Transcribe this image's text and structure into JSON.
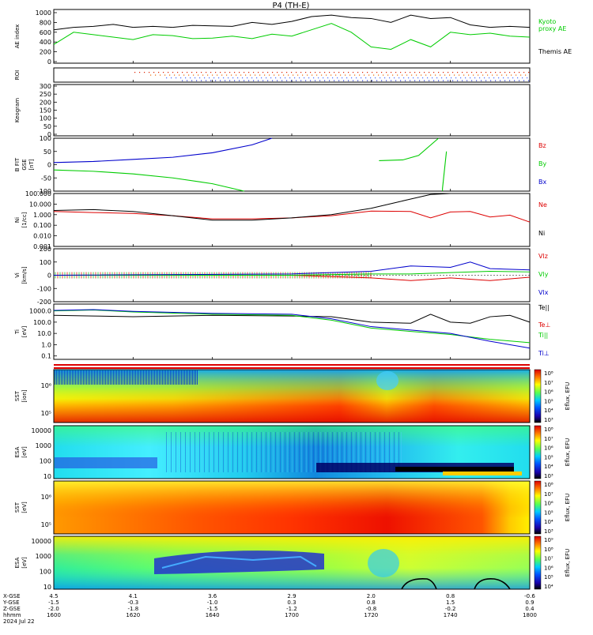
{
  "title": "P4  (TH-E)",
  "footer": {
    "date": "2024 Jul 22",
    "rows": [
      {
        "label": "X-GSE",
        "values": [
          "4.5",
          "4.1",
          "3.6",
          "2.9",
          "2.0",
          "0.8",
          "-0.6"
        ]
      },
      {
        "label": "Y-GSE",
        "values": [
          "-1.5",
          "-0.3",
          "-1.0",
          "0.3",
          "0.8",
          "1.5",
          "0.9"
        ]
      },
      {
        "label": "Z-GSE",
        "values": [
          "-2.0",
          "-1.8",
          "-1.5",
          "-1.2",
          "-0.8",
          "-0.2",
          "0.4"
        ]
      },
      {
        "label": "hhmm",
        "values": [
          "1600",
          "1620",
          "1640",
          "1700",
          "1720",
          "1740",
          "1800"
        ]
      }
    ]
  },
  "colors": {
    "kyoto": "#00cc00",
    "themis": "#000000",
    "bz": "#dd0000",
    "by": "#00cc00",
    "bx": "#0000cc",
    "ne": "#dd0000",
    "ni": "#000000",
    "te_perp": "#dd0000",
    "ti_par": "#00cc00",
    "ti_perp": "#0000cc"
  },
  "chart_data": [
    {
      "type": "line",
      "panel": "ae",
      "ylabel": "AE index",
      "ylim": [
        0,
        1000
      ],
      "yticks": [
        "0",
        "200",
        "400",
        "600",
        "800",
        "1000"
      ],
      "x_hhmm_range": [
        "1600",
        "1800"
      ],
      "series": [
        {
          "name": "Themis AE",
          "key": "themis",
          "x": [
            1600,
            1605,
            1610,
            1615,
            1620,
            1625,
            1630,
            1635,
            1640,
            1645,
            1650,
            1655,
            1700,
            1705,
            1710,
            1715,
            1720,
            1725,
            1730,
            1735,
            1740,
            1745,
            1750,
            1755,
            1800
          ],
          "values": [
            650,
            700,
            720,
            760,
            700,
            720,
            700,
            740,
            730,
            720,
            800,
            760,
            820,
            920,
            950,
            900,
            880,
            800,
            950,
            880,
            900,
            750,
            700,
            720,
            700
          ]
        },
        {
          "name": "Kyoto proxy AE",
          "key": "kyoto",
          "x": [
            1600,
            1605,
            1610,
            1615,
            1620,
            1625,
            1630,
            1635,
            1640,
            1645,
            1650,
            1655,
            1700,
            1705,
            1710,
            1715,
            1720,
            1725,
            1730,
            1735,
            1740,
            1745,
            1750,
            1755,
            1800
          ],
          "values": [
            350,
            600,
            550,
            500,
            450,
            550,
            530,
            470,
            480,
            520,
            470,
            560,
            520,
            650,
            780,
            600,
            300,
            250,
            450,
            300,
            600,
            550,
            580,
            520,
            500
          ]
        }
      ]
    },
    {
      "type": "scatter",
      "panel": "roi",
      "ylabel": "ROI"
    },
    {
      "type": "heatmap",
      "panel": "keogram",
      "ylabel": "Keogram",
      "ylim": [
        0,
        300
      ],
      "yticks": [
        "0",
        "50",
        "100",
        "150",
        "200",
        "250",
        "300"
      ]
    },
    {
      "type": "line",
      "panel": "bfield",
      "ylabel_lines": [
        "B FIT",
        "GSE",
        "[nT]"
      ],
      "ylim": [
        -100,
        100
      ],
      "yticks": [
        "-100",
        "-50",
        "0",
        "50",
        "100"
      ],
      "series": [
        {
          "name": "Bz",
          "key": "bz",
          "x": [],
          "values": []
        },
        {
          "name": "By",
          "key": "by",
          "x": [
            1600,
            1610,
            1620,
            1630,
            1640,
            1648
          ],
          "values": [
            -20,
            -25,
            -35,
            -50,
            -72,
            -100
          ]
        },
        {
          "name": "Bx",
          "key": "bx",
          "x": [
            1600,
            1610,
            1620,
            1630,
            1640,
            1650,
            1655
          ],
          "values": [
            8,
            12,
            20,
            28,
            45,
            75,
            100
          ]
        }
      ]
    },
    {
      "type": "line",
      "panel": "density",
      "ylabel_lines": [
        "Ni",
        "[1/cc]"
      ],
      "yscale": "log",
      "ylim": [
        0.001,
        100
      ],
      "yticks": [
        "0.001",
        "0.010",
        "0.100",
        "1.000",
        "10.000",
        "100.000"
      ],
      "series": [
        {
          "name": "Ne",
          "key": "ne",
          "x": [
            1600,
            1610,
            1620,
            1630,
            1640,
            1650,
            1700,
            1710,
            1720,
            1730,
            1735,
            1740,
            1745,
            1750,
            1755,
            1800
          ],
          "values": [
            2.0,
            1.6,
            1.3,
            0.8,
            0.4,
            0.4,
            0.5,
            0.8,
            2.2,
            2.0,
            0.5,
            1.8,
            2.0,
            0.6,
            0.9,
            0.2
          ]
        },
        {
          "name": "Ni",
          "key": "ni",
          "x": [
            1600,
            1610,
            1620,
            1630,
            1640,
            1650,
            1700,
            1710,
            1720,
            1730,
            1735,
            1740
          ],
          "values": [
            2.5,
            3.0,
            2.0,
            0.8,
            0.3,
            0.3,
            0.5,
            1.0,
            4.0,
            30.0,
            80.0,
            100.0
          ]
        }
      ]
    },
    {
      "type": "line",
      "panel": "velocity",
      "ylabel_lines": [
        "Vi",
        "[km/s]"
      ],
      "ylim": [
        -200,
        200
      ],
      "yticks": [
        "-200",
        "-100",
        "0",
        "100",
        "200"
      ],
      "series": [
        {
          "name": "Vlz",
          "key": "bz",
          "x": [
            1600,
            1700,
            1720,
            1730,
            1740,
            1750,
            1800
          ],
          "values": [
            0,
            0,
            -20,
            -40,
            -20,
            -40,
            -15
          ]
        },
        {
          "name": "Vly",
          "key": "by",
          "x": [
            1600,
            1700,
            1720,
            1730,
            1740,
            1750,
            1800
          ],
          "values": [
            0,
            0,
            10,
            10,
            20,
            30,
            25
          ]
        },
        {
          "name": "Vlx",
          "key": "bx",
          "x": [
            1600,
            1700,
            1720,
            1730,
            1740,
            1745,
            1750,
            1800
          ],
          "values": [
            0,
            10,
            30,
            70,
            60,
            100,
            50,
            40
          ]
        }
      ]
    },
    {
      "type": "line",
      "panel": "temperature",
      "ylabel_lines": [
        "Ti",
        "[eV]"
      ],
      "yscale": "log",
      "ylim": [
        0.05,
        4000
      ],
      "yticks": [
        "0.1",
        "1.0",
        "10.0",
        "100.0",
        "1000.0"
      ],
      "series": [
        {
          "name": "Te||",
          "key": "ni",
          "x": [
            1600,
            1610,
            1620,
            1640,
            1700,
            1710,
            1720,
            1730,
            1735,
            1740,
            1745,
            1750,
            1755,
            1800
          ],
          "values": [
            400,
            350,
            300,
            400,
            350,
            300,
            100,
            80,
            500,
            100,
            80,
            300,
            400,
            100
          ]
        },
        {
          "name": "Te⊥",
          "key": "te_perp",
          "x": [],
          "values": []
        },
        {
          "name": "Ti||",
          "key": "ti_par",
          "x": [
            1600,
            1610,
            1620,
            1640,
            1700,
            1710,
            1720,
            1730,
            1740,
            1750,
            1800
          ],
          "values": [
            1000,
            1200,
            800,
            500,
            400,
            150,
            30,
            15,
            8,
            3,
            1.5
          ]
        },
        {
          "name": "Ti⊥",
          "key": "ti_perp",
          "x": [
            1600,
            1610,
            1620,
            1640,
            1700,
            1710,
            1720,
            1730,
            1740,
            1750,
            1800
          ],
          "values": [
            1100,
            1300,
            900,
            600,
            500,
            200,
            40,
            20,
            10,
            2,
            0.5
          ]
        }
      ]
    },
    {
      "type": "heatmap",
      "panel": "sst_i",
      "ylabel_lines": [
        "SST",
        "[ion]"
      ],
      "yticks": [
        "10⁵",
        "10⁶"
      ],
      "cbar_label": "Eflux, EFU",
      "cbar_ticks": [
        "10³",
        "10⁴",
        "10⁵",
        "10⁶",
        "10⁷",
        "10⁸"
      ]
    },
    {
      "type": "heatmap",
      "panel": "esa_i",
      "ylabel_lines": [
        "ESA",
        "[eV]"
      ],
      "yticks": [
        "10",
        "100",
        "1000",
        "10000"
      ],
      "cbar_label": "Eflux, EFU",
      "cbar_ticks": [
        "10³",
        "10⁴",
        "10⁵",
        "10⁶",
        "10⁷",
        "10⁸"
      ]
    },
    {
      "type": "heatmap",
      "panel": "sst_e",
      "ylabel_lines": [
        "SST",
        "[eV]"
      ],
      "yticks": [
        "10⁵",
        "10⁶"
      ],
      "cbar_label": "Eflux, EFU",
      "cbar_ticks": [
        "10³",
        "10⁴",
        "10⁵",
        "10⁶",
        "10⁷",
        "10⁸"
      ]
    },
    {
      "type": "heatmap",
      "panel": "esa_e",
      "ylabel_lines": [
        "ESA",
        "[eV]"
      ],
      "yticks": [
        "10",
        "100",
        "1000",
        "10000"
      ],
      "cbar_label": "Eflux, EFU",
      "cbar_ticks": [
        "10⁴",
        "10⁵",
        "10⁶",
        "10⁷",
        "10⁸",
        "10⁹"
      ]
    }
  ],
  "legend": {
    "kyoto": "Kyoto proxy AE",
    "themis": "Themis AE",
    "bz": "Bz",
    "by": "By",
    "bx": "Bx",
    "ne": "Ne",
    "ni": "Ni",
    "vlz": "Vlz",
    "vly": "Vly",
    "vlx": "Vlx",
    "te_par": "Te||",
    "te_perp": "Te⊥",
    "ti_par": "Ti||",
    "ti_perp": "Ti⊥"
  }
}
